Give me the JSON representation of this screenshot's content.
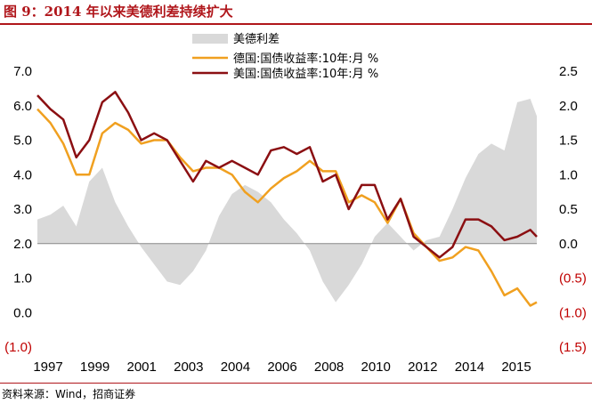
{
  "header": {
    "title": "图 9：2014 年以来美德利差持续扩大"
  },
  "footer": {
    "source": "资料来源：Wind，招商证券"
  },
  "colors": {
    "title": "#b0161b",
    "spread_area": "#d9d9d9",
    "germany": "#f0a020",
    "us": "#8b0f12",
    "negative_label": "#c00000"
  },
  "chart_data": {
    "type": "line",
    "legend_position": "top-center",
    "grid": false,
    "x_ticks": [
      "1997",
      "1999",
      "2001",
      "2003",
      "2004",
      "2006",
      "2008",
      "2010",
      "2012",
      "2014",
      "2015"
    ],
    "xlim": [
      1997.0,
      2016.25
    ],
    "y_left": {
      "ticks": [
        "(1.0)",
        "0.0",
        "1.0",
        "2.0",
        "3.0",
        "4.0",
        "5.0",
        "6.0",
        "7.0"
      ],
      "lim": [
        -1.0,
        7.0
      ]
    },
    "y_right": {
      "ticks": [
        "(1.5)",
        "(1.0)",
        "(0.5)",
        "0.0",
        "0.5",
        "1.0",
        "1.5",
        "2.0",
        "2.5"
      ],
      "lim": [
        -1.5,
        2.5
      ]
    },
    "series": [
      {
        "name": "美德利差",
        "type": "area",
        "axis": "right",
        "x": [
          1997.0,
          1997.5,
          1998.0,
          1998.5,
          1999.0,
          1999.5,
          2000.0,
          2000.5,
          2001.0,
          2001.5,
          2002.0,
          2002.5,
          2003.0,
          2003.5,
          2004.0,
          2004.5,
          2005.0,
          2005.5,
          2006.0,
          2006.5,
          2007.0,
          2007.5,
          2008.0,
          2008.5,
          2009.0,
          2009.5,
          2010.0,
          2010.5,
          2011.0,
          2011.5,
          2012.0,
          2012.5,
          2013.0,
          2013.5,
          2014.0,
          2014.5,
          2015.0,
          2015.5,
          2016.0,
          2016.25
        ],
        "values": [
          0.35,
          0.42,
          0.55,
          0.25,
          0.9,
          1.1,
          0.6,
          0.25,
          -0.05,
          -0.3,
          -0.55,
          -0.6,
          -0.4,
          -0.1,
          0.4,
          0.72,
          0.85,
          0.75,
          0.6,
          0.35,
          0.15,
          -0.1,
          -0.55,
          -0.85,
          -0.6,
          -0.3,
          0.1,
          0.3,
          0.1,
          -0.1,
          0.05,
          0.1,
          0.5,
          0.95,
          1.3,
          1.45,
          1.35,
          2.05,
          2.1,
          1.85
        ]
      },
      {
        "name": "德国:国债收益率:10年:月 %",
        "type": "line",
        "axis": "left",
        "x": [
          1997.0,
          1997.5,
          1998.0,
          1998.5,
          1999.0,
          1999.5,
          2000.0,
          2000.5,
          2001.0,
          2001.5,
          2002.0,
          2002.5,
          2003.0,
          2003.5,
          2004.0,
          2004.5,
          2005.0,
          2005.5,
          2006.0,
          2006.5,
          2007.0,
          2007.5,
          2008.0,
          2008.5,
          2009.0,
          2009.5,
          2010.0,
          2010.5,
          2011.0,
          2011.5,
          2012.0,
          2012.5,
          2013.0,
          2013.5,
          2014.0,
          2014.5,
          2015.0,
          2015.5,
          2016.0,
          2016.25
        ],
        "values": [
          5.9,
          5.5,
          4.9,
          4.0,
          4.0,
          5.2,
          5.5,
          5.3,
          4.9,
          5.0,
          5.0,
          4.5,
          4.1,
          4.2,
          4.2,
          4.0,
          3.5,
          3.2,
          3.6,
          3.9,
          4.1,
          4.4,
          4.1,
          4.1,
          3.2,
          3.4,
          3.2,
          2.6,
          3.3,
          2.3,
          1.9,
          1.5,
          1.6,
          1.9,
          1.8,
          1.2,
          0.5,
          0.7,
          0.2,
          0.3
        ]
      },
      {
        "name": "美国:国债收益率:10年:月 %",
        "type": "line",
        "axis": "left",
        "x": [
          1997.0,
          1997.5,
          1998.0,
          1998.5,
          1999.0,
          1999.5,
          2000.0,
          2000.5,
          2001.0,
          2001.5,
          2002.0,
          2002.5,
          2003.0,
          2003.5,
          2004.0,
          2004.5,
          2005.0,
          2005.5,
          2006.0,
          2006.5,
          2007.0,
          2007.5,
          2008.0,
          2008.5,
          2009.0,
          2009.5,
          2010.0,
          2010.5,
          2011.0,
          2011.5,
          2012.0,
          2012.5,
          2013.0,
          2013.5,
          2014.0,
          2014.5,
          2015.0,
          2015.5,
          2016.0,
          2016.25
        ],
        "values": [
          6.3,
          5.9,
          5.6,
          4.5,
          5.0,
          6.1,
          6.4,
          5.8,
          5.0,
          5.2,
          5.0,
          4.4,
          3.8,
          4.4,
          4.2,
          4.4,
          4.2,
          4.0,
          4.7,
          4.8,
          4.6,
          4.8,
          3.8,
          4.0,
          3.0,
          3.7,
          3.7,
          2.7,
          3.3,
          2.2,
          1.9,
          1.6,
          1.9,
          2.7,
          2.7,
          2.5,
          2.1,
          2.2,
          2.4,
          2.2
        ]
      }
    ]
  }
}
